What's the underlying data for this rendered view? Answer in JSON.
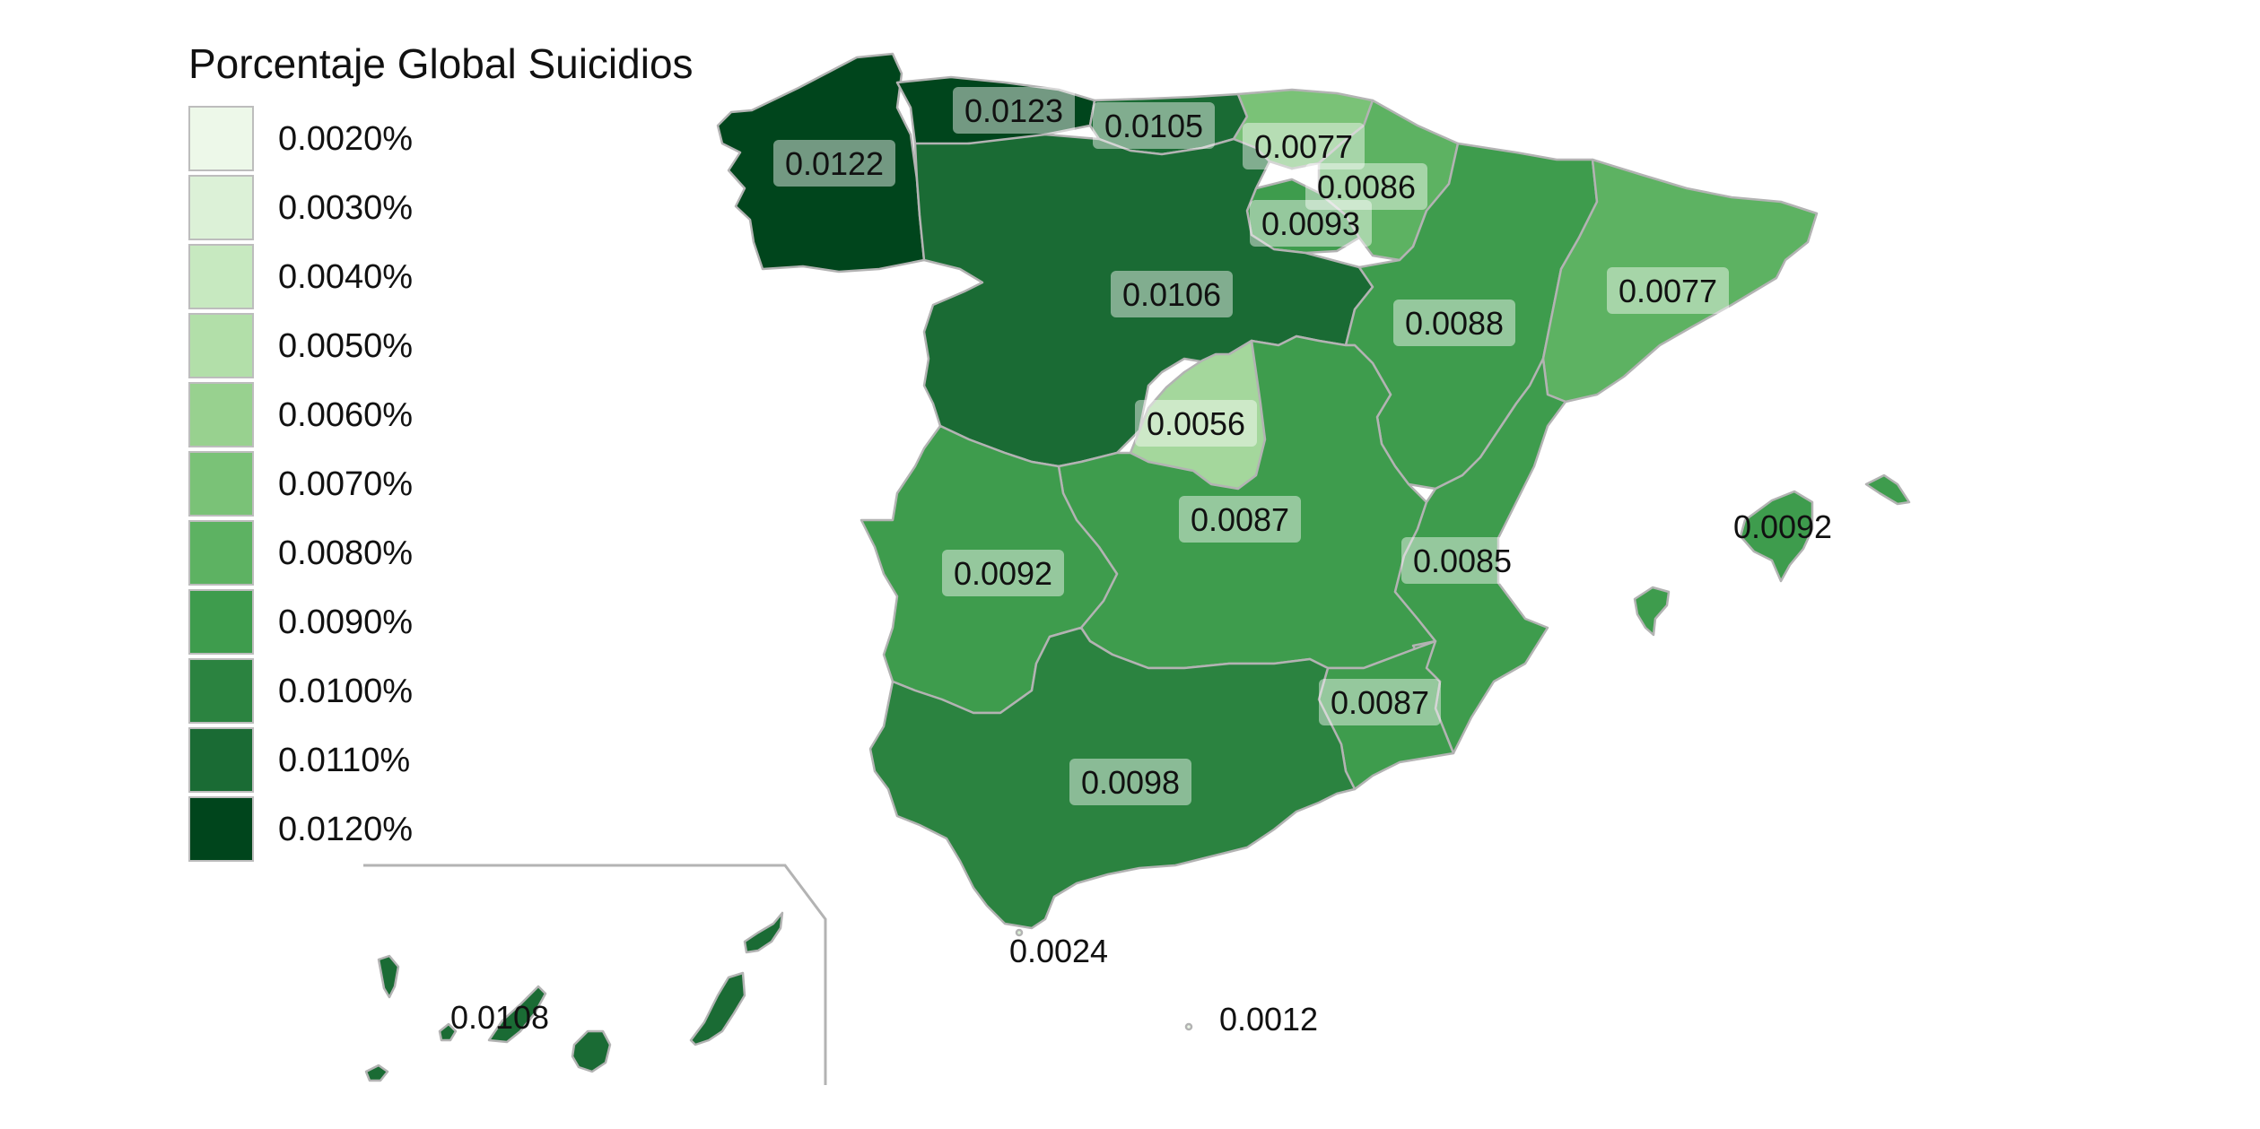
{
  "legend": {
    "title": "Porcentaje Global Suicidios",
    "items": [
      {
        "label": "0.0020%",
        "color": "#edf8e9"
      },
      {
        "label": "0.0030%",
        "color": "#dcf1d7"
      },
      {
        "label": "0.0040%",
        "color": "#c7e9c0"
      },
      {
        "label": "0.0050%",
        "color": "#b2dfa9"
      },
      {
        "label": "0.0060%",
        "color": "#98d18f"
      },
      {
        "label": "0.0070%",
        "color": "#7ac277"
      },
      {
        "label": "0.0080%",
        "color": "#5db262"
      },
      {
        "label": "0.0090%",
        "color": "#3e9c4d"
      },
      {
        "label": "0.0100%",
        "color": "#2b8340"
      },
      {
        "label": "0.0110%",
        "color": "#1a6b34"
      },
      {
        "label": "0.0120%",
        "color": "#00451c"
      }
    ]
  },
  "regions": [
    {
      "id": "galicia",
      "label": "0.0122",
      "color": "#00451c"
    },
    {
      "id": "asturias",
      "label": "0.0123",
      "color": "#00451c"
    },
    {
      "id": "cantabria",
      "label": "0.0105",
      "color": "#1a6b34"
    },
    {
      "id": "pais-vasco",
      "label": "0.0077",
      "color": "#7ac277"
    },
    {
      "id": "navarra",
      "label": "0.0086",
      "color": "#5db262"
    },
    {
      "id": "la-rioja",
      "label": "0.0093",
      "color": "#3e9c4d"
    },
    {
      "id": "castilla-y-leon",
      "label": "0.0106",
      "color": "#1a6b34"
    },
    {
      "id": "aragon",
      "label": "0.0088",
      "color": "#3e9c4d"
    },
    {
      "id": "cataluna",
      "label": "0.0077",
      "color": "#5db262"
    },
    {
      "id": "madrid",
      "label": "0.0056",
      "color": "#a4d79c"
    },
    {
      "id": "castilla-la-mancha",
      "label": "0.0087",
      "color": "#3e9c4d"
    },
    {
      "id": "extremadura",
      "label": "0.0092",
      "color": "#3e9c4d"
    },
    {
      "id": "comunidad-valenciana",
      "label": "0.0085",
      "color": "#3e9c4d"
    },
    {
      "id": "murcia",
      "label": "0.0087",
      "color": "#3e9c4d"
    },
    {
      "id": "andalucia",
      "label": "0.0098",
      "color": "#2b8340"
    },
    {
      "id": "baleares",
      "label": "0.0092",
      "color": "#3e9c4d"
    },
    {
      "id": "canarias",
      "label": "0.0108",
      "color": "#1a6b34"
    },
    {
      "id": "ceuta",
      "label": "0.0024",
      "color": "#dcf1d7"
    },
    {
      "id": "melilla",
      "label": "0.0012",
      "color": "#edf8e9"
    }
  ],
  "border_color": "#b3b3b3",
  "inset_frame_color": "#b3b3b3"
}
